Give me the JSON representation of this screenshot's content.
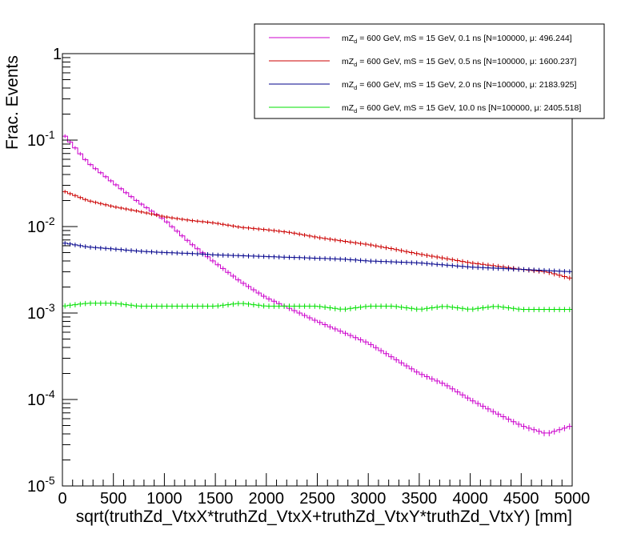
{
  "chart_data": {
    "type": "line",
    "title": "",
    "xlabel": "sqrt(truthZd_VtxX*truthZd_VtxX+truthZd_VtxY*truthZd_VtxY) [mm]",
    "ylabel": "Frac. Events",
    "xlim": [
      0,
      5000
    ],
    "ylim": [
      1e-05,
      1
    ],
    "yscale": "log",
    "x_ticks": [
      "0",
      "500",
      "1000",
      "1500",
      "2000",
      "2500",
      "3000",
      "3500",
      "4000",
      "4500",
      "5000"
    ],
    "y_ticks": [
      {
        "base": "10",
        "exp": "-5"
      },
      {
        "base": "10",
        "exp": "-4"
      },
      {
        "base": "10",
        "exp": "-3"
      },
      {
        "base": "10",
        "exp": "-2"
      },
      {
        "base": "10",
        "exp": "-1"
      },
      {
        "base": "1",
        "exp": ""
      }
    ],
    "legend_position": "top-right",
    "series": [
      {
        "name": "0.1 ns",
        "color": "#cc00cc",
        "legend_main": "mZ",
        "legend_sub": "d",
        "legend_rest": " = 600 GeV, mS = 15 GeV, 0.1 ns [N=100000, μ: 496.244]",
        "x": [
          0,
          250,
          500,
          750,
          1000,
          1250,
          1500,
          1750,
          2000,
          2250,
          2500,
          2750,
          3000,
          3250,
          3500,
          3750,
          4000,
          4250,
          4500,
          4750,
          5000
        ],
        "values": [
          0.12,
          0.055,
          0.032,
          0.019,
          0.012,
          0.0065,
          0.0038,
          0.0023,
          0.0015,
          0.0011,
          0.0008,
          0.0006,
          0.00045,
          0.0003,
          0.0002,
          0.00015,
          0.0001,
          7e-05,
          5e-05,
          4e-05,
          5e-05
        ]
      },
      {
        "name": "0.5 ns",
        "color": "#cc0000",
        "legend_main": "mZ",
        "legend_sub": "d",
        "legend_rest": " = 600 GeV, mS = 15 GeV, 0.5 ns [N=100000, μ: 1600.237]",
        "x": [
          0,
          250,
          500,
          750,
          1000,
          1250,
          1500,
          1750,
          2000,
          2250,
          2500,
          2750,
          3000,
          3250,
          3500,
          3750,
          4000,
          4250,
          4500,
          4750,
          5000
        ],
        "values": [
          0.026,
          0.02,
          0.017,
          0.015,
          0.013,
          0.0118,
          0.011,
          0.0098,
          0.0092,
          0.0085,
          0.0075,
          0.0068,
          0.0062,
          0.0055,
          0.0048,
          0.0043,
          0.0038,
          0.0035,
          0.0032,
          0.003,
          0.0025
        ]
      },
      {
        "name": "2.0 ns",
        "color": "#00008b",
        "legend_main": "mZ",
        "legend_sub": "d",
        "legend_rest": " = 600 GeV, mS = 15 GeV, 2.0 ns [N=100000, μ: 2183.925]",
        "x": [
          0,
          250,
          500,
          750,
          1000,
          1250,
          1500,
          1750,
          2000,
          2250,
          2500,
          2750,
          3000,
          3250,
          3500,
          3750,
          4000,
          4250,
          4500,
          4750,
          5000
        ],
        "values": [
          0.0065,
          0.0058,
          0.0055,
          0.0052,
          0.005,
          0.0049,
          0.0047,
          0.0046,
          0.0045,
          0.0044,
          0.0043,
          0.0042,
          0.004,
          0.0039,
          0.0038,
          0.0036,
          0.0034,
          0.0033,
          0.0032,
          0.0031,
          0.003
        ]
      },
      {
        "name": "10.0 ns",
        "color": "#00e000",
        "legend_main": "mZ",
        "legend_sub": "d",
        "legend_rest": " = 600 GeV, mS = 15 GeV, 10.0 ns [N=100000, μ: 2405.518]",
        "x": [
          0,
          250,
          500,
          750,
          1000,
          1250,
          1500,
          1750,
          2000,
          2250,
          2500,
          2750,
          3000,
          3250,
          3500,
          3750,
          4000,
          4250,
          4500,
          4750,
          5000
        ],
        "values": [
          0.0012,
          0.0013,
          0.0013,
          0.0012,
          0.0012,
          0.0012,
          0.0012,
          0.0013,
          0.0012,
          0.0012,
          0.0012,
          0.0011,
          0.0012,
          0.0012,
          0.0011,
          0.0012,
          0.0011,
          0.0012,
          0.0011,
          0.0011,
          0.0011
        ]
      }
    ]
  }
}
